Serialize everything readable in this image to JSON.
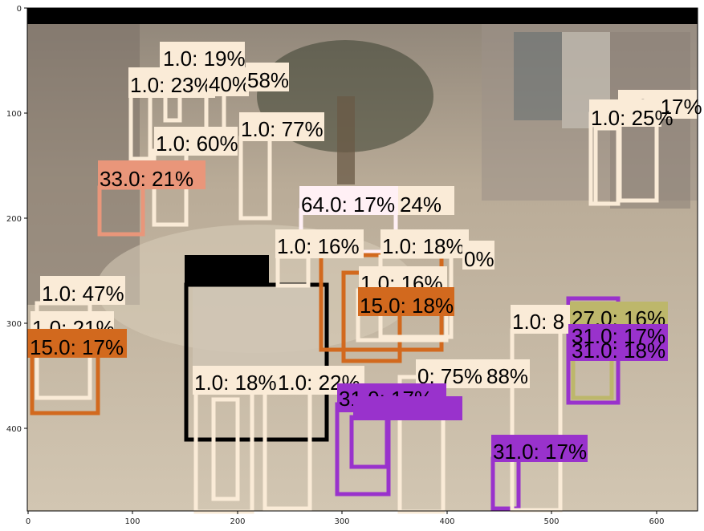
{
  "figure": {
    "axes": {
      "x_ticks": [
        "0",
        "100",
        "200",
        "300",
        "400",
        "500",
        "600"
      ],
      "y_ticks": [
        "0",
        "100",
        "200",
        "300",
        "400"
      ],
      "x_range": [
        0,
        640
      ],
      "y_range": [
        480,
        0
      ],
      "frame_color": "#000000"
    },
    "image": {
      "description_icon": "mall-interior-photo",
      "bg_color": "#b5a898",
      "floor_color": "#c9bba6"
    },
    "detections": [
      {
        "label": "1.0: 19%",
        "color": "#faebd7",
        "text_bg": "#faebd7"
      },
      {
        "label": "1.0: 23%",
        "color": "#faebd7",
        "text_bg": "#faebd7"
      },
      {
        "label": "40%",
        "color": "#faebd7",
        "text_bg": "#faebd7"
      },
      {
        "label": "58%",
        "color": "#faebd7",
        "text_bg": "#faebd7"
      },
      {
        "label": "1.0: 60%",
        "color": "#faebd7",
        "text_bg": "#faebd7"
      },
      {
        "label": "1.0: 77%",
        "color": "#faebd7",
        "text_bg": "#faebd7"
      },
      {
        "label": "33.0: 21%",
        "color": "#e9967a",
        "text_bg": "#e9967a"
      },
      {
        "label": "64.0: 17%",
        "color": "#fff0f5",
        "text_bg": "#fff0f5"
      },
      {
        "label": "24%",
        "color": "#faebd7",
        "text_bg": "#faebd7"
      },
      {
        "label": "1.0: 16%",
        "color": "#faebd7",
        "text_bg": "#faebd7"
      },
      {
        "label": "1.0: 18%",
        "color": "#faebd7",
        "text_bg": "#faebd7"
      },
      {
        "label": "0%",
        "color": "#faebd7",
        "text_bg": "#faebd7"
      },
      {
        "label": "1.0: 16%",
        "color": "#faebd7",
        "text_bg": "#faebd7"
      },
      {
        "label": "15.0: 18%",
        "color": "#d2691e",
        "text_bg": "#d2691e"
      },
      {
        "label": "1.0: 47%",
        "color": "#faebd7",
        "text_bg": "#faebd7"
      },
      {
        "label": "1.0: 21%",
        "color": "#faebd7",
        "text_bg": "#faebd7"
      },
      {
        "label": "15.0: 17%",
        "color": "#d2691e",
        "text_bg": "#d2691e"
      },
      {
        "label": "1.0: 8",
        "color": "#faebd7",
        "text_bg": "#faebd7"
      },
      {
        "label": "27.0: 16%",
        "color": "#bdb76b",
        "text_bg": "#bdb76b"
      },
      {
        "label": "31.0: 17%",
        "color": "#9932cc",
        "text_bg": "#9932cc"
      },
      {
        "label": "31.0: 18%",
        "color": "#9932cc",
        "text_bg": "#9932cc"
      },
      {
        "label": "1.0: 18%",
        "color": "#faebd7",
        "text_bg": "#faebd7"
      },
      {
        "label": "1.0: 22%",
        "color": "#faebd7",
        "text_bg": "#faebd7"
      },
      {
        "label": "0: 75%",
        "color": "#faebd7",
        "text_bg": "#faebd7"
      },
      {
        "label": "88%",
        "color": "#faebd7",
        "text_bg": "#faebd7"
      },
      {
        "label": "31.0: 17%",
        "color": "#9932cc",
        "text_bg": "#9932cc"
      },
      {
        "label": "1.0: 17%",
        "color": "#faebd7",
        "text_bg": "#faebd7"
      },
      {
        "label": "1.0: 25%",
        "color": "#faebd7",
        "text_bg": "#faebd7"
      },
      {
        "label": "31.0: 17%",
        "color": "#9932cc",
        "text_bg": "#9932cc"
      }
    ]
  }
}
